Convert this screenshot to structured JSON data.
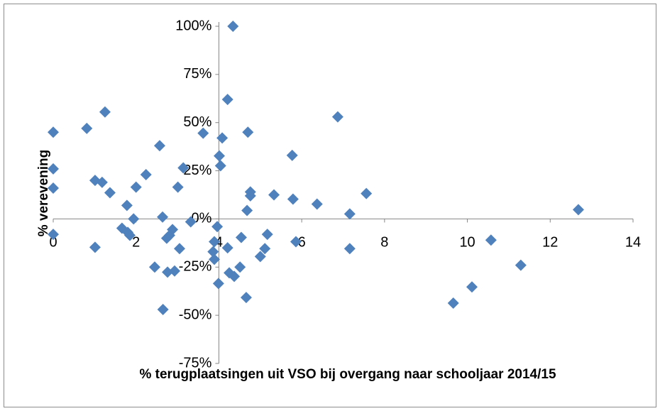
{
  "chart_data": {
    "type": "scatter",
    "xlabel": "% terugplaatsingen uit VSO bij overgang naar schooljaar 2014/15",
    "ylabel": "% verevening",
    "color": "#4f81bd",
    "xlim": [
      0,
      14
    ],
    "xticks": [
      0,
      2,
      4,
      6,
      8,
      10,
      12,
      14
    ],
    "ylim": [
      -75,
      100
    ],
    "yticks": [
      {
        "value": -75,
        "label": "-75%"
      },
      {
        "value": -50,
        "label": "-50%"
      },
      {
        "value": -25,
        "label": "-25%"
      },
      {
        "value": 0,
        "label": "0%"
      },
      {
        "value": 25,
        "label": "25%"
      },
      {
        "value": 50,
        "label": "50%"
      },
      {
        "value": 75,
        "label": "75%"
      },
      {
        "value": 100,
        "label": "100%"
      }
    ],
    "y_axis_crosses_x": 4,
    "x_axis_crosses_y": 0,
    "x": [
      4.34,
      4.21,
      0,
      0.81,
      1.25,
      0,
      0,
      0,
      1.01,
      1.18,
      1.37,
      1.01,
      2.24,
      2.0,
      1.78,
      1.94,
      1.66,
      1.8,
      1.85,
      2.57,
      3.62,
      3.14,
      3.01,
      2.64,
      2.88,
      2.81,
      2.74,
      3.32,
      3.05,
      2.45,
      2.76,
      2.93,
      2.65,
      4.08,
      4.01,
      4.04,
      4.7,
      3.96,
      3.89,
      3.86,
      3.89,
      4.21,
      4.54,
      4.25,
      4.37,
      4.51,
      3.99,
      4.66,
      4.76,
      4.76,
      4.68,
      5.33,
      5.17,
      5.11,
      5.0,
      5.77,
      5.79,
      5.86,
      6.37,
      6.87,
      7.16,
      7.16,
      7.56,
      9.66,
      10.11,
      10.57,
      11.29,
      12.68
    ],
    "values": [
      100,
      62,
      45,
      47,
      55.5,
      26,
      16,
      -8,
      20,
      19,
      13.6,
      -14.7,
      23,
      16.5,
      7,
      0,
      -4.8,
      -7,
      -8.5,
      38,
      44.5,
      26.5,
      16.5,
      1,
      -5.5,
      -8.5,
      -10,
      -1.5,
      -15.4,
      -25,
      -27.6,
      -27,
      -47,
      42,
      32.7,
      27.6,
      45,
      -4,
      -11.8,
      -17,
      -21,
      -15,
      -9.6,
      -28,
      -29.8,
      -25,
      -33.5,
      -40.8,
      14,
      12,
      4.4,
      12.5,
      -8,
      -15.4,
      -19.5,
      33,
      10.3,
      -11.8,
      7.7,
      53,
      2.6,
      -15.4,
      13.2,
      -43.7,
      -35.3,
      -11,
      -24,
      4.8
    ]
  }
}
